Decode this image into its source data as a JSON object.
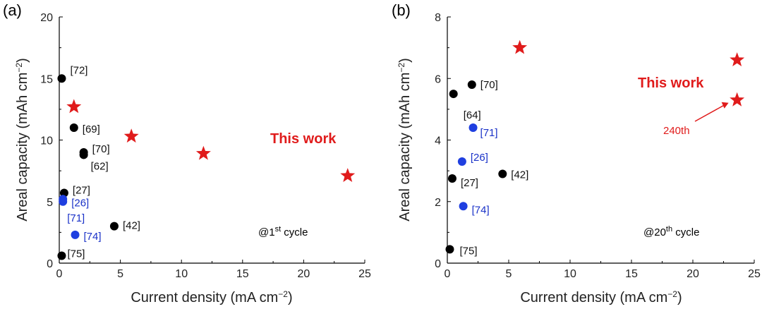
{
  "chart_data": [
    {
      "type": "scatter",
      "panel_label": "(a)",
      "xlabel": "Current density (mA cm",
      "xlabel_sup": "−2",
      "xlabel_end": ")",
      "ylabel": "Areal capacity (mAh cm",
      "ylabel_sup": "−2",
      "ylabel_end": ")",
      "xlim": [
        0,
        25
      ],
      "ylim": [
        0,
        20
      ],
      "xticks": [
        "0",
        "5",
        "10",
        "15",
        "20",
        "25"
      ],
      "yticks": [
        "0",
        "5",
        "10",
        "15",
        "20"
      ],
      "cycle_note": {
        "prefix": "@1",
        "sup": "st",
        "suffix": " cycle"
      },
      "this_work_label": "This work",
      "points": [
        {
          "x": 0.2,
          "y": 15.0,
          "label": "[72]",
          "color": "black",
          "marker": "circle"
        },
        {
          "x": 1.2,
          "y": 11.0,
          "label": "[69]",
          "color": "black",
          "marker": "circle"
        },
        {
          "x": 2.0,
          "y": 9.0,
          "label": "[70]",
          "color": "black",
          "marker": "circle"
        },
        {
          "x": 2.0,
          "y": 8.8,
          "label": "[62]",
          "color": "black",
          "marker": "circle"
        },
        {
          "x": 0.4,
          "y": 5.7,
          "label": "[27]",
          "color": "black",
          "marker": "circle"
        },
        {
          "x": 0.3,
          "y": 5.2,
          "label": "[26]",
          "color": "blue",
          "marker": "circle"
        },
        {
          "x": 0.3,
          "y": 5.0,
          "label": "[71]",
          "color": "blue",
          "marker": "circle"
        },
        {
          "x": 1.3,
          "y": 2.3,
          "label": "[74]",
          "color": "blue",
          "marker": "circle"
        },
        {
          "x": 4.5,
          "y": 3.0,
          "label": "[42]",
          "color": "black",
          "marker": "circle"
        },
        {
          "x": 0.2,
          "y": 0.6,
          "label": "[75]",
          "color": "black",
          "marker": "circle"
        },
        {
          "x": 1.2,
          "y": 12.7,
          "label": "",
          "color": "red",
          "marker": "star"
        },
        {
          "x": 5.9,
          "y": 10.3,
          "label": "",
          "color": "red",
          "marker": "star"
        },
        {
          "x": 11.8,
          "y": 8.9,
          "label": "",
          "color": "red",
          "marker": "star"
        },
        {
          "x": 23.6,
          "y": 7.1,
          "label": "",
          "color": "red",
          "marker": "star"
        }
      ]
    },
    {
      "type": "scatter",
      "panel_label": "(b)",
      "xlabel": "Current density (mA cm",
      "xlabel_sup": "−2",
      "xlabel_end": ")",
      "ylabel": "Areal capacity (mAh cm",
      "ylabel_sup": "−2",
      "ylabel_end": ")",
      "xlim": [
        0,
        25
      ],
      "ylim": [
        0,
        8
      ],
      "xticks": [
        "0",
        "5",
        "10",
        "15",
        "20",
        "25"
      ],
      "yticks": [
        "0",
        "2",
        "4",
        "6",
        "8"
      ],
      "cycle_note": {
        "prefix": "@20",
        "sup": "th",
        "suffix": " cycle"
      },
      "this_work_label": "This work",
      "annotation": "240th",
      "points": [
        {
          "x": 2.0,
          "y": 5.8,
          "label": "[70]",
          "color": "black",
          "marker": "circle"
        },
        {
          "x": 0.5,
          "y": 5.5,
          "label": "[64]",
          "color": "black",
          "marker": "circle"
        },
        {
          "x": 2.1,
          "y": 4.4,
          "label": "[71]",
          "color": "blue",
          "marker": "circle"
        },
        {
          "x": 1.2,
          "y": 3.3,
          "label": "[26]",
          "color": "blue",
          "marker": "circle"
        },
        {
          "x": 0.4,
          "y": 2.75,
          "label": "[27]",
          "color": "black",
          "marker": "circle"
        },
        {
          "x": 4.5,
          "y": 2.9,
          "label": "[42]",
          "color": "black",
          "marker": "circle"
        },
        {
          "x": 1.3,
          "y": 1.85,
          "label": "[74]",
          "color": "blue",
          "marker": "circle"
        },
        {
          "x": 0.2,
          "y": 0.45,
          "label": "[75]",
          "color": "black",
          "marker": "circle"
        },
        {
          "x": 5.9,
          "y": 7.0,
          "label": "",
          "color": "red",
          "marker": "star"
        },
        {
          "x": 23.6,
          "y": 6.6,
          "label": "",
          "color": "red",
          "marker": "star"
        },
        {
          "x": 23.6,
          "y": 5.3,
          "label": "",
          "color": "red",
          "marker": "star"
        }
      ]
    }
  ]
}
